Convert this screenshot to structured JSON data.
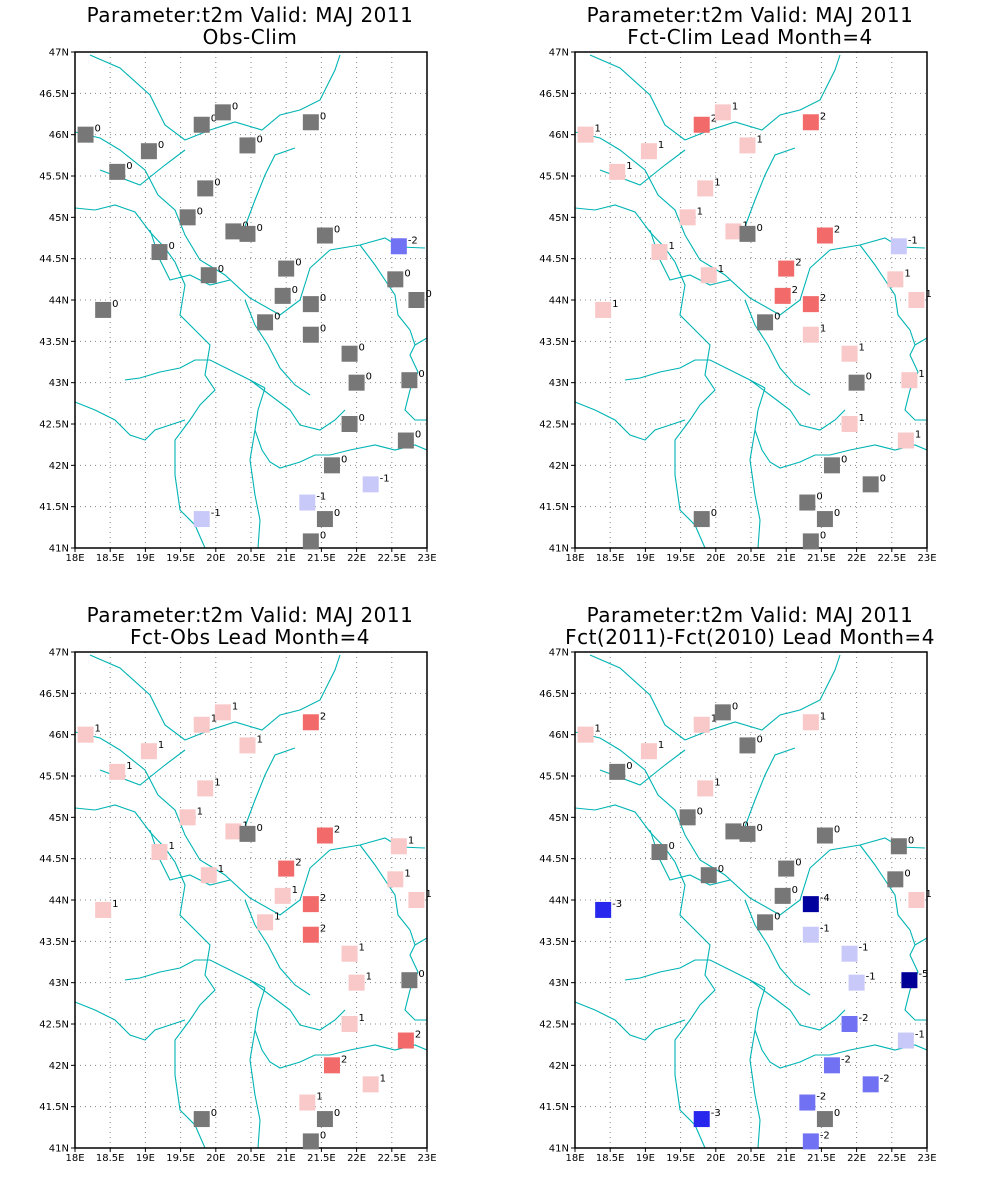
{
  "panels": [
    {
      "title1": "Parameter:t2m Valid: MAJ 2011",
      "title2": "Obs-Clim",
      "stations": [
        {
          "v": "0"
        },
        {
          "v": "0"
        },
        {
          "v": "0"
        },
        {
          "v": "0"
        },
        {
          "v": "0"
        },
        {
          "v": "0"
        },
        {
          "v": "0"
        },
        {
          "v": "0"
        },
        {
          "v": "0"
        },
        {
          "v": "0"
        },
        {
          "v": "0"
        },
        {
          "v": "-2"
        },
        {
          "v": "0"
        },
        {
          "v": "0"
        },
        {
          "v": "0"
        },
        {
          "v": "0"
        },
        {
          "v": "0"
        },
        {
          "v": "0"
        },
        {
          "v": "0"
        },
        {
          "v": "0"
        },
        {
          "v": "0"
        },
        {
          "v": "0"
        },
        {
          "v": "0"
        },
        {
          "v": "0"
        },
        {
          "v": "0"
        },
        {
          "v": "0"
        },
        {
          "v": "0"
        },
        {
          "v": "0"
        },
        {
          "v": "0"
        },
        {
          "v": "-1"
        },
        {
          "v": "-1"
        },
        {
          "v": "0"
        },
        {
          "v": "0"
        },
        {
          "v": "-1"
        }
      ]
    },
    {
      "title1": "Parameter:t2m Valid: MAJ 2011",
      "title2": "Fct-Clim Lead Month=4",
      "stations": [
        {
          "v": "1"
        },
        {
          "v": "2"
        },
        {
          "v": "1"
        },
        {
          "v": "2"
        },
        {
          "v": "1"
        },
        {
          "v": "1"
        },
        {
          "v": "1"
        },
        {
          "v": "1"
        },
        {
          "v": "1"
        },
        {
          "v": "1"
        },
        {
          "v": "0"
        },
        {
          "v": "-1"
        },
        {
          "v": "2"
        },
        {
          "v": "1"
        },
        {
          "v": "1"
        },
        {
          "v": "2"
        },
        {
          "v": "1"
        },
        {
          "v": "2"
        },
        {
          "v": "1"
        },
        {
          "v": "2"
        },
        {
          "v": "1"
        },
        {
          "v": "0"
        },
        {
          "v": "1"
        },
        {
          "v": "1"
        },
        {
          "v": "0"
        },
        {
          "v": "1"
        },
        {
          "v": "1"
        },
        {
          "v": "1"
        },
        {
          "v": "0"
        },
        {
          "v": "0"
        },
        {
          "v": "0"
        },
        {
          "v": "0"
        },
        {
          "v": "0"
        },
        {
          "v": "0"
        }
      ]
    },
    {
      "title1": "Parameter:t2m Valid: MAJ 2011",
      "title2": "Fct-Obs Lead Month=4",
      "stations": [
        {
          "v": "1"
        },
        {
          "v": "1"
        },
        {
          "v": "1"
        },
        {
          "v": "2"
        },
        {
          "v": "1"
        },
        {
          "v": "1"
        },
        {
          "v": "1"
        },
        {
          "v": "1"
        },
        {
          "v": "1"
        },
        {
          "v": "1"
        },
        {
          "v": "0"
        },
        {
          "v": "1"
        },
        {
          "v": "2"
        },
        {
          "v": "1"
        },
        {
          "v": "1"
        },
        {
          "v": "2"
        },
        {
          "v": "1"
        },
        {
          "v": "1"
        },
        {
          "v": "1"
        },
        {
          "v": "2"
        },
        {
          "v": "1"
        },
        {
          "v": "1"
        },
        {
          "v": "2"
        },
        {
          "v": "1"
        },
        {
          "v": "1"
        },
        {
          "v": "0"
        },
        {
          "v": "1"
        },
        {
          "v": "2"
        },
        {
          "v": "2"
        },
        {
          "v": "1"
        },
        {
          "v": "0"
        },
        {
          "v": "0"
        },
        {
          "v": "0"
        },
        {
          "v": "1"
        }
      ]
    },
    {
      "title1": "Parameter:t2m Valid: MAJ 2011",
      "title2": "Fct(2011)-Fct(2010) Lead Month=4",
      "stations": [
        {
          "v": "1"
        },
        {
          "v": "1"
        },
        {
          "v": "0"
        },
        {
          "v": "1"
        },
        {
          "v": "1"
        },
        {
          "v": "0"
        },
        {
          "v": "0"
        },
        {
          "v": "1"
        },
        {
          "v": "0"
        },
        {
          "v": "0"
        },
        {
          "v": "0"
        },
        {
          "v": "0"
        },
        {
          "v": "0"
        },
        {
          "v": "0"
        },
        {
          "v": "0"
        },
        {
          "v": "0"
        },
        {
          "v": "0"
        },
        {
          "v": "0"
        },
        {
          "v": "-3"
        },
        {
          "v": "-4"
        },
        {
          "v": "1"
        },
        {
          "v": "0"
        },
        {
          "v": "-1"
        },
        {
          "v": "-1"
        },
        {
          "v": "-1"
        },
        {
          "v": "-5"
        },
        {
          "v": "-2"
        },
        {
          "v": "-1"
        },
        {
          "v": "-2"
        },
        {
          "v": "-2"
        },
        {
          "v": "-3"
        },
        {
          "v": "0"
        },
        {
          "v": "-2"
        },
        {
          "v": "-2"
        }
      ]
    }
  ],
  "station_coords": [
    {
      "lon": 18.15,
      "lat": 46.0
    },
    {
      "lon": 19.8,
      "lat": 46.12
    },
    {
      "lon": 20.1,
      "lat": 46.27
    },
    {
      "lon": 21.35,
      "lat": 46.15
    },
    {
      "lon": 19.05,
      "lat": 45.8
    },
    {
      "lon": 18.6,
      "lat": 45.55
    },
    {
      "lon": 20.45,
      "lat": 45.87
    },
    {
      "lon": 19.85,
      "lat": 45.35
    },
    {
      "lon": 19.6,
      "lat": 45.0
    },
    {
      "lon": 20.25,
      "lat": 44.83
    },
    {
      "lon": 20.45,
      "lat": 44.8
    },
    {
      "lon": 22.6,
      "lat": 44.65
    },
    {
      "lon": 21.55,
      "lat": 44.78
    },
    {
      "lon": 19.2,
      "lat": 44.58
    },
    {
      "lon": 19.9,
      "lat": 44.3
    },
    {
      "lon": 21.0,
      "lat": 44.38
    },
    {
      "lon": 22.55,
      "lat": 44.25
    },
    {
      "lon": 20.95,
      "lat": 44.05
    },
    {
      "lon": 18.4,
      "lat": 43.88
    },
    {
      "lon": 21.35,
      "lat": 43.95
    },
    {
      "lon": 22.85,
      "lat": 44.0
    },
    {
      "lon": 20.7,
      "lat": 43.73
    },
    {
      "lon": 21.35,
      "lat": 43.58
    },
    {
      "lon": 21.9,
      "lat": 43.35
    },
    {
      "lon": 22.0,
      "lat": 43.0
    },
    {
      "lon": 22.75,
      "lat": 43.03
    },
    {
      "lon": 21.9,
      "lat": 42.5
    },
    {
      "lon": 22.7,
      "lat": 42.3
    },
    {
      "lon": 21.65,
      "lat": 42.0
    },
    {
      "lon": 22.2,
      "lat": 41.77
    },
    {
      "lon": 19.8,
      "lat": 41.35
    },
    {
      "lon": 21.55,
      "lat": 41.35
    },
    {
      "lon": 21.35,
      "lat": 41.08
    },
    {
      "lon": 21.3,
      "lat": 41.55
    }
  ],
  "axes": {
    "x_ticks": [
      "18E",
      "18.5E",
      "19E",
      "19.5E",
      "20E",
      "20.5E",
      "21E",
      "21.5E",
      "22E",
      "22.5E",
      "23E"
    ],
    "y_ticks": [
      "41N",
      "41.5N",
      "42N",
      "42.5N",
      "43N",
      "43.5N",
      "44N",
      "44.5N",
      "45N",
      "45.5N",
      "46N",
      "46.5N",
      "47N"
    ],
    "lon_range": [
      18,
      23
    ],
    "lat_range": [
      41,
      47
    ]
  },
  "colors": {
    "zero": "#777777",
    "pos1": "#f9c8c8",
    "pos2": "#f26a6a",
    "neg1": "#c9c9f9",
    "neg2": "#7171f3",
    "neg3": "#2727ee",
    "neg4": "#00009e",
    "neg5": "#000096",
    "border": "#00b4b4"
  }
}
